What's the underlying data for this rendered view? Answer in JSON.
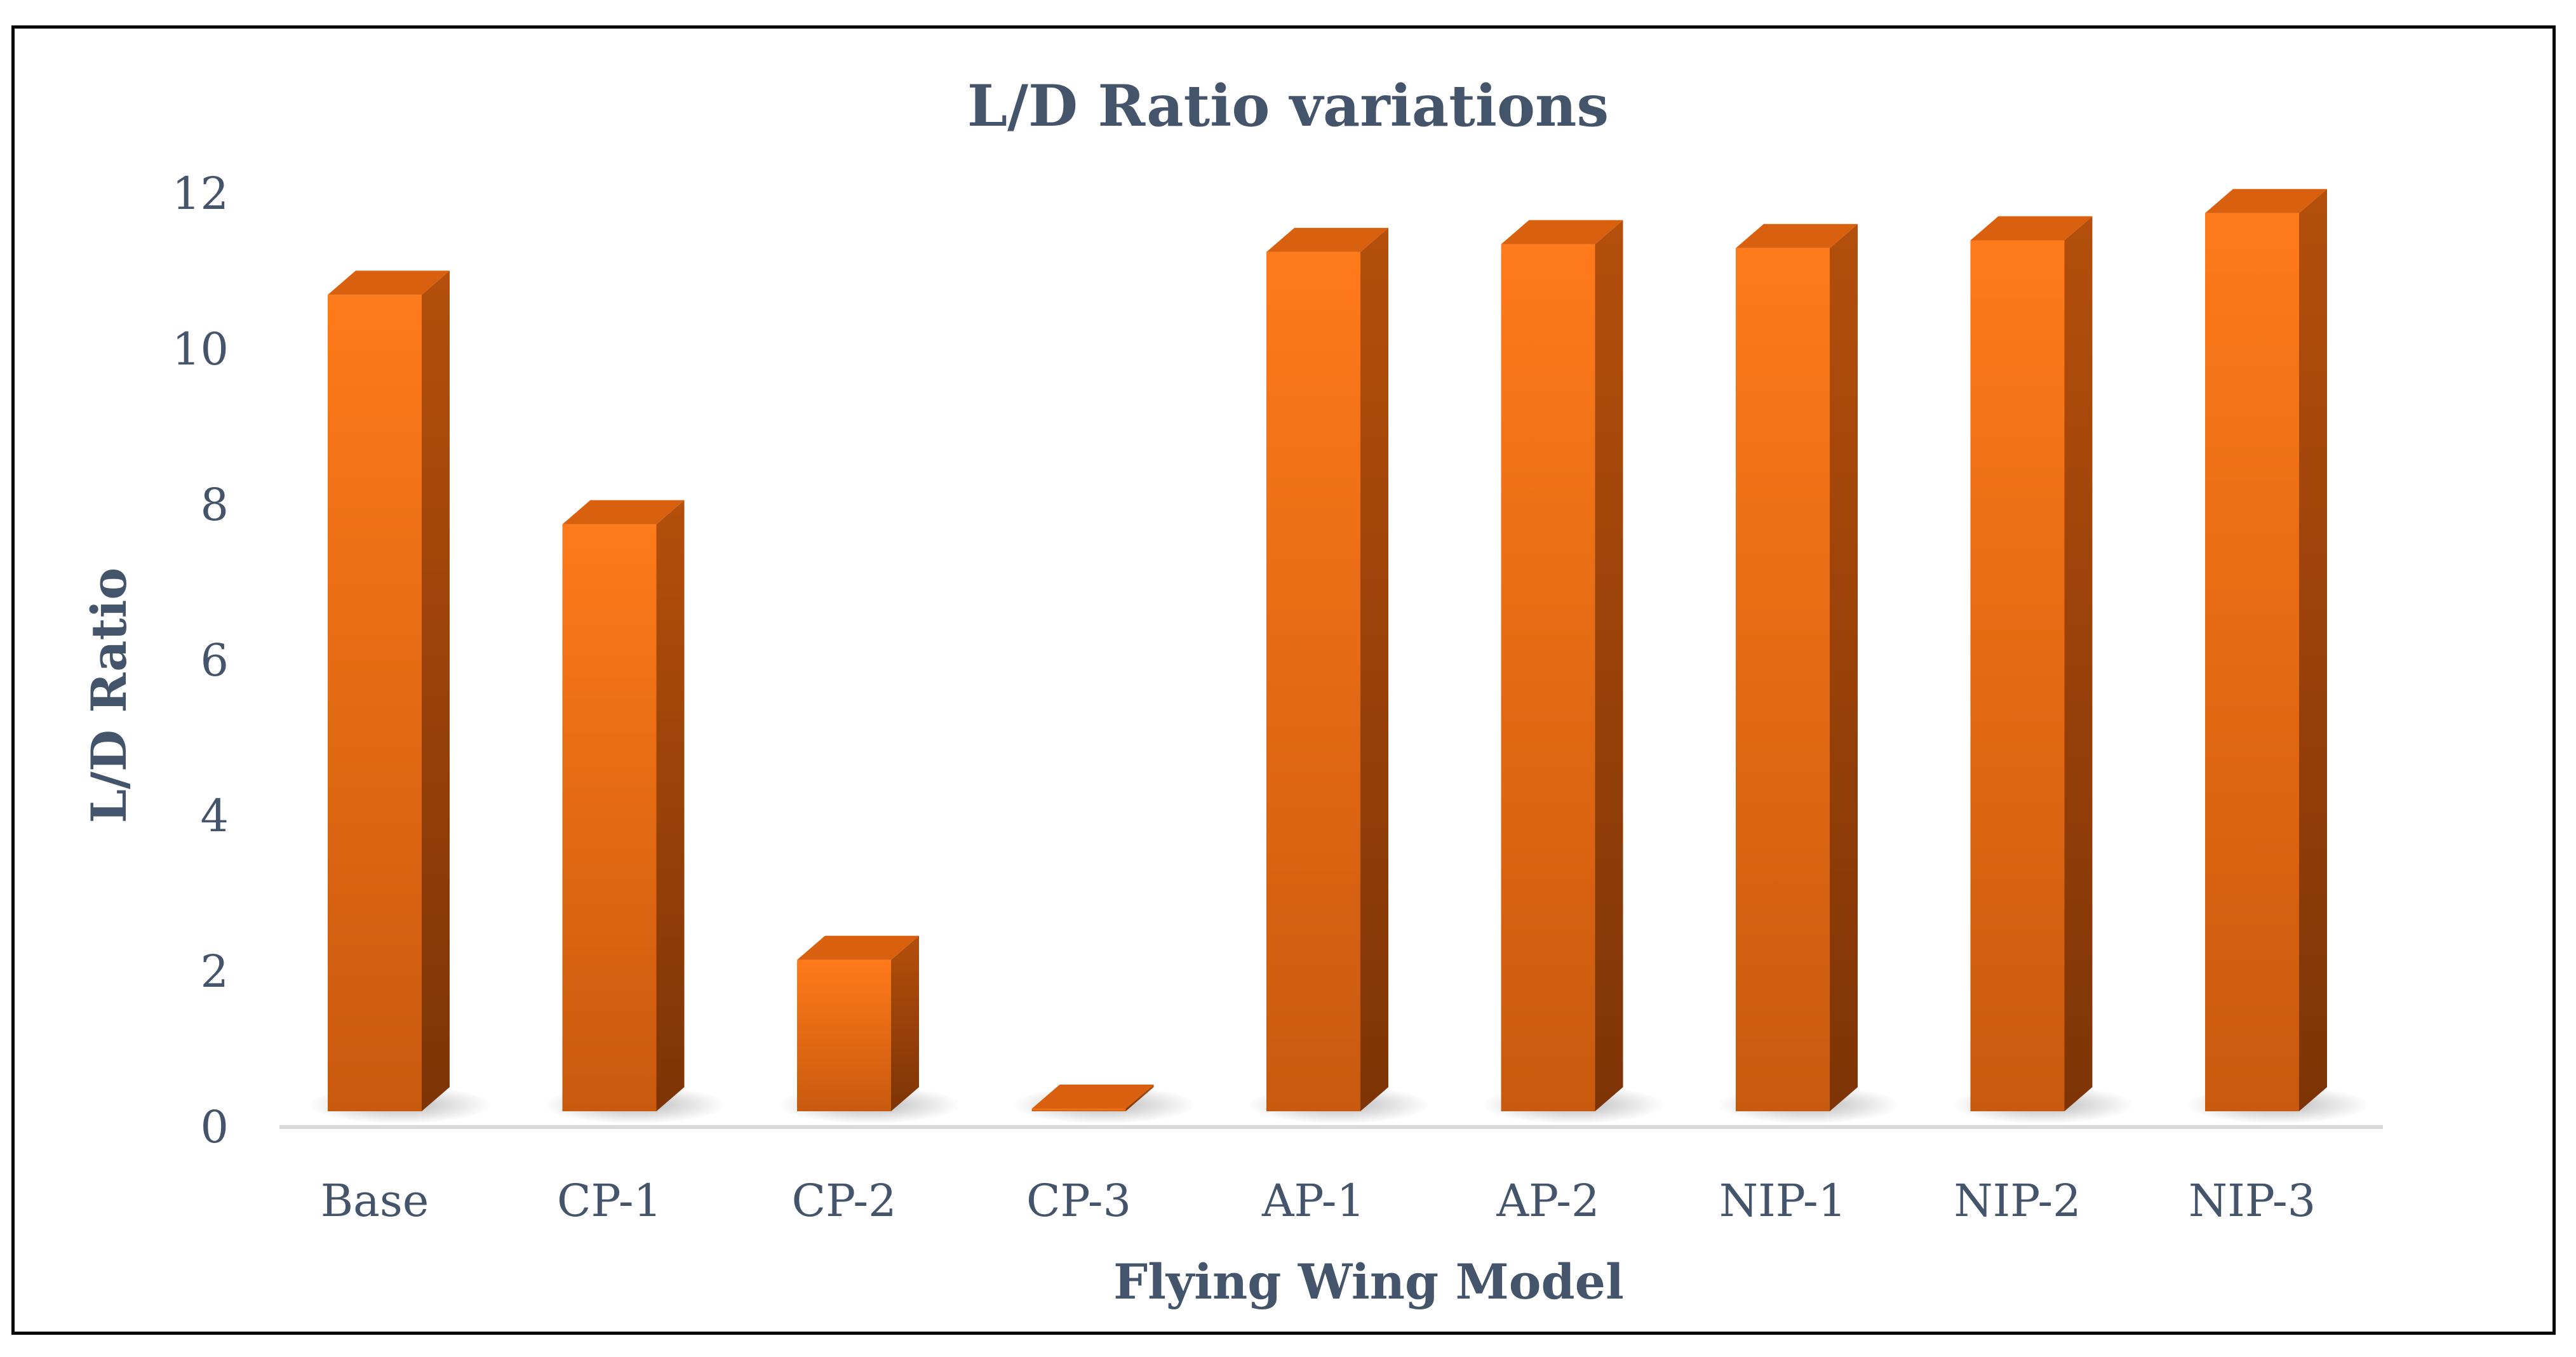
{
  "chart_data": {
    "type": "bar",
    "title": "L/D Ratio variations",
    "xlabel": "Flying Wing Model",
    "ylabel": "L/D Ratio",
    "categories": [
      "Base",
      "CP-1",
      "CP-2",
      "CP-3",
      "AP-1",
      "AP-2",
      "NIP-1",
      "NIP-2",
      "NIP-3"
    ],
    "values": [
      10.7,
      7.75,
      2.15,
      0.05,
      11.25,
      11.35,
      11.3,
      11.4,
      11.75
    ],
    "ylim": [
      0,
      12
    ],
    "yticks": [
      "0",
      "2",
      "4",
      "6",
      "8",
      "10",
      "12"
    ],
    "grid": false,
    "legend": "none",
    "colors": {
      "bar_front_top": "#ff7a1a",
      "bar_front_bottom": "#c85a0e",
      "bar_side": "#a5460a",
      "bar_side_dark": "#7e3406",
      "bar_top": "#d9600f",
      "axis_line": "#d9d9d9",
      "text": "#44546a"
    }
  }
}
